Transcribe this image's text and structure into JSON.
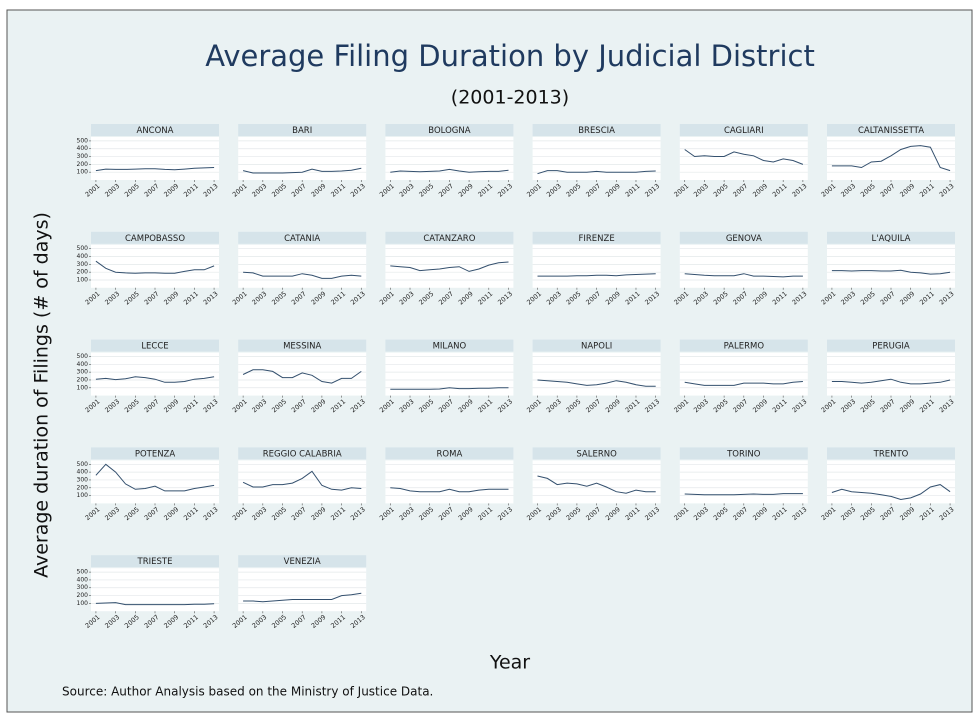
{
  "chart_data": {
    "type": "line",
    "title": "Average Filing Duration by Judicial District",
    "subtitle": "(2001-2013)",
    "xlabel": "Year",
    "ylabel": "Average duration of Filings (# of days)",
    "note": "Source: Author Analysis based on the Ministry of Justice Data.",
    "x": [
      2001,
      2002,
      2003,
      2004,
      2005,
      2006,
      2007,
      2008,
      2009,
      2010,
      2011,
      2012,
      2013
    ],
    "xlim": [
      2000.5,
      2013.5
    ],
    "xticks": [
      2001,
      2003,
      2005,
      2007,
      2009,
      2011,
      2013
    ],
    "ylim": [
      0,
      550
    ],
    "yticks": [
      100,
      200,
      300,
      400,
      500
    ],
    "grid": true,
    "color": "#34506e",
    "panels": [
      {
        "name": "ANCONA",
        "values": [
          120,
          140,
          135,
          135,
          140,
          145,
          145,
          135,
          130,
          140,
          150,
          155,
          160
        ]
      },
      {
        "name": "BARI",
        "values": [
          120,
          90,
          90,
          90,
          90,
          95,
          100,
          140,
          110,
          110,
          115,
          125,
          150
        ]
      },
      {
        "name": "BOLOGNA",
        "values": [
          100,
          115,
          110,
          105,
          110,
          115,
          135,
          115,
          100,
          105,
          110,
          110,
          125
        ]
      },
      {
        "name": "BRESCIA",
        "values": [
          80,
          120,
          120,
          100,
          100,
          100,
          110,
          100,
          100,
          100,
          100,
          110,
          115
        ]
      },
      {
        "name": "CAGLIARI",
        "values": [
          390,
          300,
          310,
          300,
          300,
          360,
          330,
          310,
          250,
          230,
          270,
          250,
          200
        ]
      },
      {
        "name": "CALTANISSETTA",
        "values": [
          180,
          180,
          180,
          160,
          230,
          240,
          310,
          390,
          430,
          440,
          420,
          160,
          120
        ]
      },
      {
        "name": "CAMPOBASSO",
        "values": [
          340,
          250,
          200,
          190,
          185,
          190,
          190,
          185,
          185,
          210,
          230,
          230,
          280
        ]
      },
      {
        "name": "CATANIA",
        "values": [
          200,
          190,
          150,
          150,
          150,
          150,
          180,
          160,
          120,
          120,
          150,
          160,
          150
        ]
      },
      {
        "name": "CATANZARO",
        "values": [
          280,
          270,
          260,
          220,
          230,
          240,
          260,
          270,
          210,
          240,
          290,
          320,
          330
        ]
      },
      {
        "name": "FIRENZE",
        "values": [
          150,
          150,
          150,
          150,
          155,
          155,
          160,
          160,
          155,
          165,
          170,
          175,
          180
        ]
      },
      {
        "name": "GENOVA",
        "values": [
          180,
          170,
          160,
          155,
          155,
          155,
          180,
          150,
          150,
          145,
          140,
          150,
          150
        ]
      },
      {
        "name": "L'AQUILA",
        "values": [
          220,
          220,
          215,
          220,
          220,
          215,
          215,
          225,
          200,
          190,
          175,
          180,
          200
        ]
      },
      {
        "name": "LECCE",
        "values": [
          210,
          220,
          205,
          215,
          240,
          230,
          210,
          170,
          170,
          180,
          210,
          220,
          240
        ]
      },
      {
        "name": "MESSINA",
        "values": [
          270,
          330,
          330,
          310,
          230,
          230,
          290,
          260,
          180,
          160,
          220,
          220,
          310
        ]
      },
      {
        "name": "MILANO",
        "values": [
          80,
          80,
          80,
          80,
          80,
          85,
          100,
          90,
          90,
          95,
          95,
          100,
          100
        ]
      },
      {
        "name": "NAPOLI",
        "values": [
          200,
          190,
          180,
          170,
          150,
          130,
          140,
          160,
          190,
          170,
          140,
          120,
          120
        ]
      },
      {
        "name": "PALERMO",
        "values": [
          170,
          150,
          130,
          130,
          130,
          130,
          160,
          160,
          160,
          150,
          150,
          170,
          180
        ]
      },
      {
        "name": "PERUGIA",
        "values": [
          180,
          180,
          170,
          160,
          170,
          190,
          210,
          170,
          150,
          150,
          160,
          170,
          200
        ]
      },
      {
        "name": "POTENZA",
        "values": [
          360,
          500,
          400,
          250,
          180,
          190,
          220,
          160,
          160,
          160,
          190,
          210,
          230
        ]
      },
      {
        "name": "REGGIO CALABRIA",
        "values": [
          270,
          210,
          210,
          240,
          240,
          260,
          320,
          410,
          230,
          180,
          170,
          200,
          190
        ]
      },
      {
        "name": "ROMA",
        "values": [
          200,
          190,
          160,
          150,
          150,
          150,
          180,
          150,
          150,
          170,
          180,
          180,
          180
        ]
      },
      {
        "name": "SALERNO",
        "values": [
          350,
          320,
          240,
          260,
          250,
          220,
          260,
          210,
          150,
          130,
          170,
          150,
          150
        ]
      },
      {
        "name": "TORINO",
        "values": [
          120,
          115,
          110,
          110,
          110,
          110,
          115,
          120,
          115,
          115,
          125,
          125,
          125
        ]
      },
      {
        "name": "TRENTO",
        "values": [
          140,
          180,
          150,
          140,
          130,
          110,
          90,
          50,
          70,
          120,
          210,
          240,
          150
        ]
      },
      {
        "name": "TRIESTE",
        "values": [
          100,
          105,
          110,
          85,
          85,
          85,
          85,
          85,
          85,
          85,
          90,
          90,
          95
        ]
      },
      {
        "name": "VENEZIA",
        "values": [
          130,
          130,
          120,
          130,
          140,
          150,
          150,
          150,
          150,
          150,
          200,
          210,
          230
        ]
      }
    ]
  }
}
